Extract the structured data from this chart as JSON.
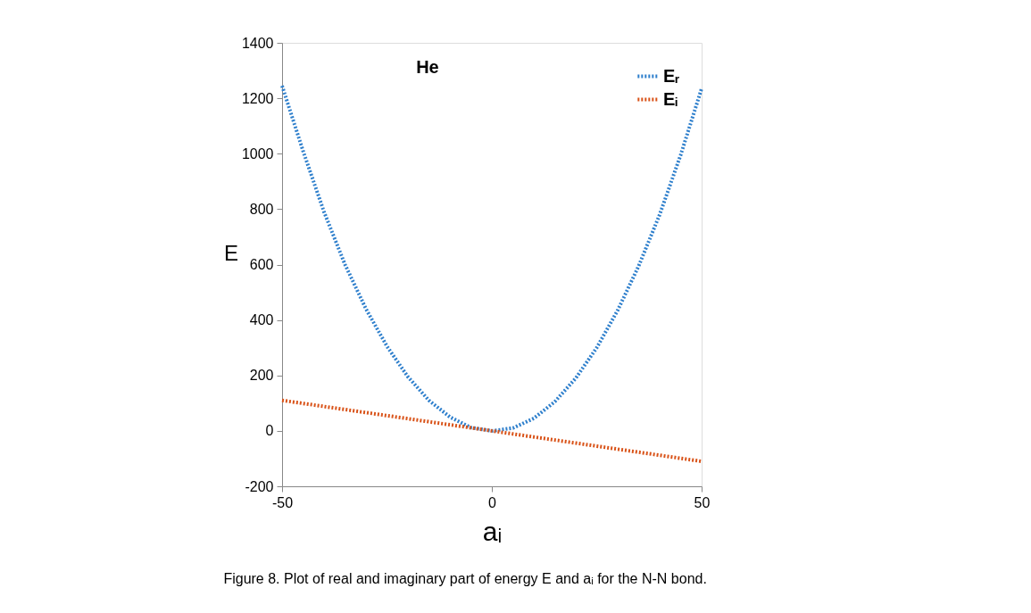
{
  "chart_data": {
    "type": "line",
    "xlabel": "aᵢ",
    "ylabel": "E",
    "x": [
      -50,
      -45,
      -40,
      -35,
      -30,
      -25,
      -20,
      -15,
      -10,
      -5,
      0,
      5,
      10,
      15,
      20,
      25,
      30,
      35,
      40,
      45,
      50
    ],
    "series": [
      {
        "name": "Eᵣ",
        "color": "#2e7fcc",
        "values": [
          1245,
          1010,
          790,
          600,
          440,
          305,
          195,
          110,
          50,
          12,
          0,
          10,
          45,
          105,
          190,
          300,
          435,
          595,
          780,
          995,
          1235
        ]
      },
      {
        "name": "Eᵢ",
        "color": "#d95319",
        "values": [
          110,
          99,
          88,
          77,
          66,
          55,
          44,
          33,
          22,
          11,
          0,
          -11,
          -22,
          -33,
          -44,
          -55,
          -66,
          -77,
          -88,
          -99,
          -110
        ]
      }
    ],
    "xlim": [
      -50,
      50
    ],
    "xticks": [
      -50,
      0,
      50
    ],
    "ylim": [
      -200,
      1400
    ],
    "yticks": [
      -200,
      0,
      200,
      400,
      600,
      800,
      1000,
      1200,
      1400
    ],
    "annotations": [
      "He",
      "Figure 8. Plot of real and imaginary part of energy E and aᵢ for the N-N bond."
    ],
    "legend": "top right",
    "line_style": "dotted",
    "marker": "none",
    "grid": false
  }
}
